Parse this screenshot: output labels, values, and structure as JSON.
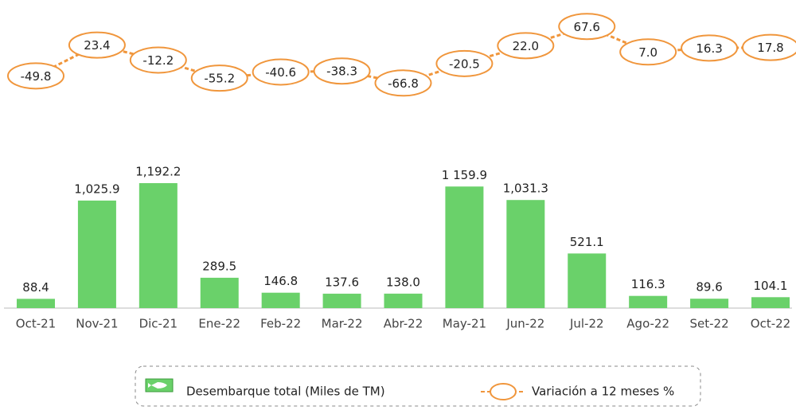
{
  "chart_data": {
    "type": "bar",
    "categories": [
      "Oct-21",
      "Nov-21",
      "Dic-21",
      "Ene-22",
      "Feb-22",
      "Mar-22",
      "Abr-22",
      "May-21",
      "Jun-22",
      "Jul-22",
      "Ago-22",
      "Set-22",
      "Oct-22"
    ],
    "ylim": [
      0,
      1200
    ],
    "y2lim": [
      -70,
      70
    ],
    "legend": "bottom",
    "series": [
      {
        "name": "Desembarque total (Miles de TM)",
        "type": "bar",
        "color": "#6ad16a",
        "values": [
          88.4,
          1025.9,
          1192.2,
          289.5,
          146.8,
          137.6,
          138.0,
          1159.9,
          1031.3,
          521.1,
          116.3,
          89.6,
          104.1
        ],
        "value_labels": [
          "88.4",
          "1,025.9",
          "1,192.2",
          "289.5",
          "146.8",
          "137.6",
          "138.0",
          "1 159.9",
          "1,031.3",
          "521.1",
          "116.3",
          "89.6",
          "104.1"
        ]
      },
      {
        "name": "Variación a 12 meses %",
        "type": "line",
        "axis": "y2",
        "color": "#f0963c",
        "values": [
          -49.8,
          23.4,
          -12.2,
          -55.2,
          -40.6,
          -38.3,
          -66.8,
          -20.5,
          22.0,
          67.6,
          7.0,
          16.3,
          17.8
        ],
        "value_labels": [
          "-49.8",
          "23.4",
          "-12.2",
          "-55.2",
          "-40.6",
          "-38.3",
          "-66.8",
          "-20.5",
          "22.0",
          "67.6",
          "7.0",
          "16.3",
          "17.8"
        ]
      }
    ]
  }
}
